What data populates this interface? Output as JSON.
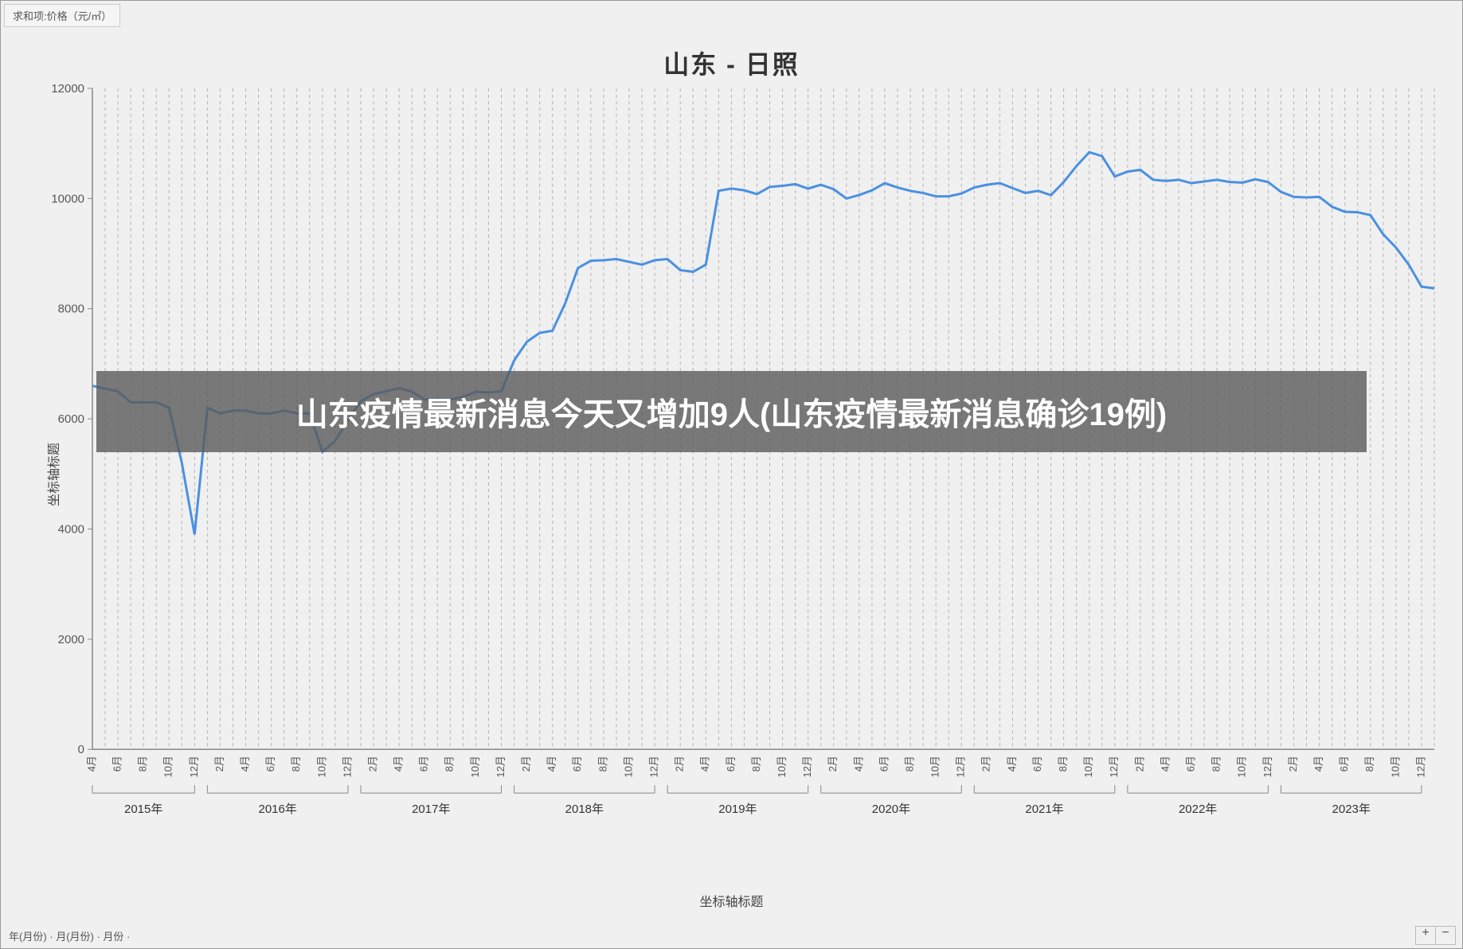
{
  "top_left_button": "求和项:价格（元/㎡）",
  "chart": {
    "type": "line",
    "title": "山东 - 日照",
    "title_fontsize": 32,
    "y_axis_title": "坐标轴标题",
    "x_axis_title": "坐标轴标题",
    "background_color": "#f0f0f0",
    "line_color": "#4a90e2",
    "line_width": 3,
    "grid_color": "#b0b0b0",
    "grid_dash": "4,4",
    "axis_color": "#888888",
    "ylim": [
      0,
      12000
    ],
    "ytick_step": 2000,
    "ytick_labels": [
      "0",
      "2000",
      "4000",
      "6000",
      "8000",
      "10000",
      "12000"
    ],
    "years": [
      "2015年",
      "2016年",
      "2017年",
      "2018年",
      "2019年",
      "2020年",
      "2021年",
      "2022年",
      "2023年"
    ],
    "months_per_year_first": [
      "4月",
      "6月",
      "8月",
      "10月",
      "12月"
    ],
    "months_per_year_rest": [
      "2月",
      "4月",
      "6月",
      "8月",
      "10月",
      "12月"
    ],
    "overlay_text": "山东疫情最新消息今天又增加9人(山东疫情最新消息确诊19例)",
    "overlay_bg": "rgba(90,90,90,0.8)",
    "overlay_color": "#ffffff",
    "overlay_fontsize": 40,
    "data_values": [
      6600,
      6550,
      6500,
      6300,
      6300,
      6300,
      6200,
      5200,
      3900,
      6200,
      6100,
      6150,
      6150,
      6100,
      6100,
      6150,
      6100,
      6100,
      5400,
      5600,
      5980,
      6320,
      6450,
      6500,
      6560,
      6490,
      6350,
      6360,
      6350,
      6400,
      6490,
      6480,
      6500,
      7060,
      7400,
      7560,
      7600,
      8100,
      8740,
      8870,
      8880,
      8900,
      8850,
      8800,
      8880,
      8900,
      8700,
      8670,
      8800,
      10140,
      10180,
      10150,
      10080,
      10210,
      10230,
      10260,
      10180,
      10250,
      10170,
      10000,
      10065,
      10150,
      10280,
      10200,
      10140,
      10100,
      10040,
      10040,
      10090,
      10200,
      10250,
      10280,
      10190,
      10100,
      10140,
      10060,
      10300,
      10590,
      10840,
      10770,
      10400,
      10490,
      10520,
      10340,
      10320,
      10340,
      10280,
      10310,
      10340,
      10300,
      10290,
      10350,
      10300,
      10120,
      10030,
      10020,
      10030,
      9850,
      9760,
      9750,
      9700,
      9350,
      9110,
      8800,
      8400,
      8370
    ]
  },
  "bottom_left_text": "年(月份)  ·  月(月份)  ·  月份  ·",
  "bottom_right": {
    "plus": "+",
    "minus": "−"
  }
}
